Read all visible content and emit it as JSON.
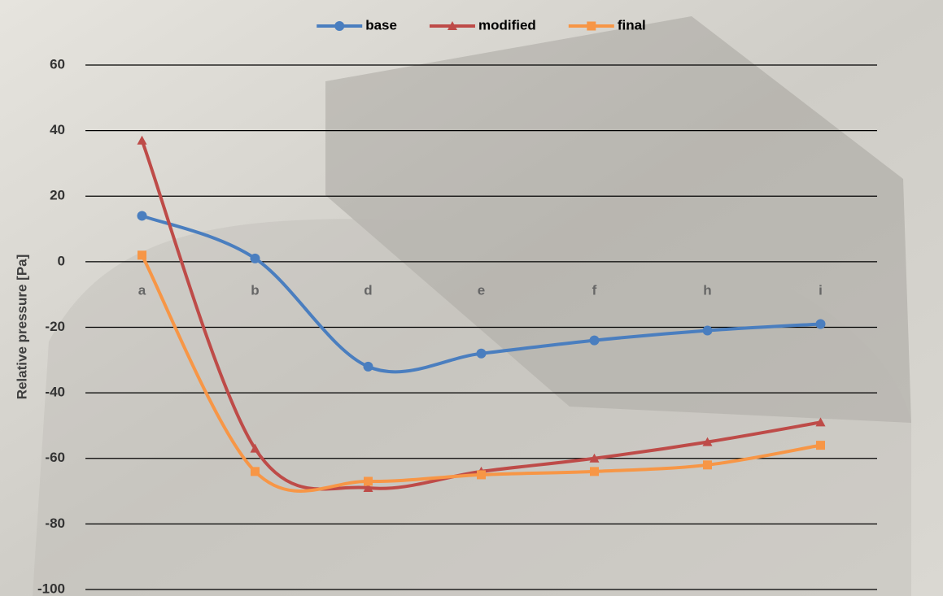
{
  "chart_data": {
    "type": "line",
    "y_label": "Relative pressure [Pa]",
    "categories": [
      "a",
      "b",
      "d",
      "e",
      "f",
      "h",
      "i"
    ],
    "series": [
      {
        "name": "base",
        "color": "#4a7ebf",
        "marker": "circle",
        "values": [
          14,
          1,
          -32,
          -28,
          -24,
          -21,
          -19
        ]
      },
      {
        "name": "modified",
        "color": "#be4b48",
        "marker": "triangle",
        "values": [
          37,
          -57,
          -69,
          -64,
          -60,
          -55,
          -49
        ]
      },
      {
        "name": "final",
        "color": "#f79646",
        "marker": "square",
        "values": [
          2,
          -64,
          -67,
          -65,
          -64,
          -62,
          -56
        ]
      }
    ],
    "ylim": [
      -100,
      60
    ],
    "yticks": [
      -100,
      -80,
      -60,
      -40,
      -20,
      0,
      20,
      40,
      60
    ],
    "grid": true,
    "smooth": true,
    "legend": "top"
  }
}
